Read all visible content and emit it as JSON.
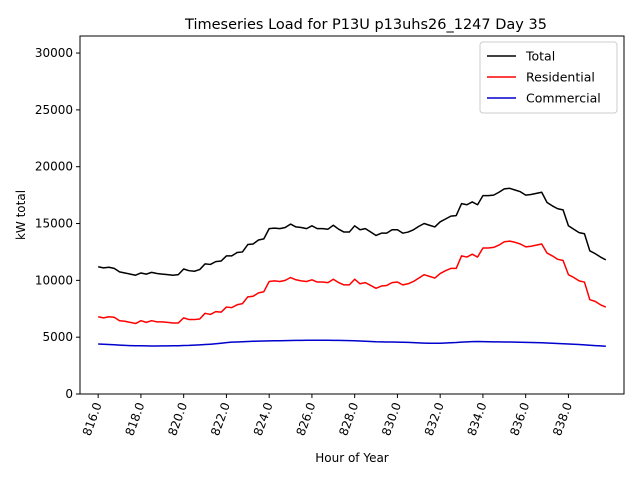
{
  "chart_data": {
    "type": "line",
    "title": "Timeseries Load for P13U p13uhs26_1247  Day 35",
    "xlabel": "Hour of Year",
    "ylabel": "kW total",
    "xlim": [
      815.15,
      840.6
    ],
    "ylim": [
      0,
      31500
    ],
    "x_ticks": [
      816,
      818,
      820,
      822,
      824,
      826,
      828,
      830,
      832,
      834,
      836,
      838
    ],
    "x_tick_labels": [
      "816.0",
      "818.0",
      "820.0",
      "822.0",
      "824.0",
      "826.0",
      "828.0",
      "830.0",
      "832.0",
      "834.0",
      "836.0",
      "838.0"
    ],
    "y_ticks": [
      0,
      5000,
      10000,
      15000,
      20000,
      25000,
      30000
    ],
    "y_tick_labels": [
      "0",
      "5000",
      "10000",
      "15000",
      "20000",
      "25000",
      "30000"
    ],
    "x_start": 816.0,
    "x_step": 0.25,
    "legend_position": "upper-right",
    "series": [
      {
        "name": "Total",
        "color": "#000000",
        "values": [
          11200,
          11100,
          11150,
          11050,
          10750,
          10650,
          10550,
          10450,
          10650,
          10550,
          10700,
          10600,
          10550,
          10500,
          10450,
          10500,
          11000,
          10850,
          10800,
          10950,
          11450,
          11400,
          11650,
          11700,
          12150,
          12150,
          12450,
          12500,
          13150,
          13200,
          13550,
          13650,
          14550,
          14600,
          14550,
          14650,
          14950,
          14700,
          14650,
          14550,
          14800,
          14550,
          14550,
          14500,
          14850,
          14500,
          14250,
          14250,
          14800,
          14450,
          14550,
          14250,
          13950,
          14150,
          14150,
          14450,
          14450,
          14150,
          14250,
          14450,
          14750,
          15000,
          14850,
          14700,
          15150,
          15400,
          15650,
          15700,
          16750,
          16650,
          16900,
          16650,
          17450,
          17450,
          17500,
          17750,
          18050,
          18100,
          17950,
          17800,
          17500,
          17550,
          17650,
          17750,
          16850,
          16550,
          16300,
          16200,
          14800,
          14500,
          14200,
          14100,
          12600,
          12350,
          12050,
          11800
        ]
      },
      {
        "name": "Residential",
        "color": "#ff0000",
        "values": [
          6800,
          6700,
          6800,
          6750,
          6450,
          6400,
          6300,
          6200,
          6450,
          6300,
          6450,
          6350,
          6350,
          6300,
          6250,
          6250,
          6700,
          6550,
          6550,
          6600,
          7100,
          7000,
          7250,
          7200,
          7650,
          7600,
          7850,
          7950,
          8550,
          8600,
          8900,
          9000,
          9900,
          9950,
          9900,
          10000,
          10250,
          10050,
          9950,
          9900,
          10050,
          9850,
          9850,
          9800,
          10100,
          9800,
          9600,
          9600,
          10100,
          9700,
          9800,
          9550,
          9300,
          9500,
          9550,
          9800,
          9850,
          9600,
          9700,
          9900,
          10200,
          10500,
          10350,
          10200,
          10600,
          10850,
          11050,
          11050,
          12150,
          12050,
          12300,
          12050,
          12850,
          12850,
          12900,
          13100,
          13400,
          13450,
          13350,
          13200,
          12950,
          13000,
          13100,
          13200,
          12400,
          12150,
          11850,
          11750,
          10500,
          10250,
          9950,
          9850,
          8300,
          8150,
          7850,
          7650
        ]
      },
      {
        "name": "Commercial",
        "color": "#0000cc",
        "values": [
          4400,
          4380,
          4360,
          4330,
          4300,
          4280,
          4260,
          4250,
          4240,
          4230,
          4220,
          4220,
          4230,
          4230,
          4240,
          4250,
          4270,
          4280,
          4300,
          4320,
          4350,
          4380,
          4420,
          4470,
          4520,
          4560,
          4580,
          4600,
          4620,
          4640,
          4650,
          4660,
          4670,
          4680,
          4690,
          4700,
          4710,
          4720,
          4720,
          4730,
          4730,
          4730,
          4730,
          4730,
          4720,
          4720,
          4710,
          4700,
          4680,
          4660,
          4640,
          4620,
          4600,
          4590,
          4580,
          4570,
          4560,
          4550,
          4540,
          4520,
          4500,
          4480,
          4470,
          4460,
          4470,
          4490,
          4510,
          4530,
          4560,
          4590,
          4610,
          4620,
          4610,
          4600,
          4590,
          4590,
          4580,
          4570,
          4560,
          4550,
          4540,
          4530,
          4520,
          4510,
          4490,
          4470,
          4440,
          4420,
          4400,
          4380,
          4350,
          4320,
          4290,
          4260,
          4230,
          4200
        ]
      }
    ]
  }
}
